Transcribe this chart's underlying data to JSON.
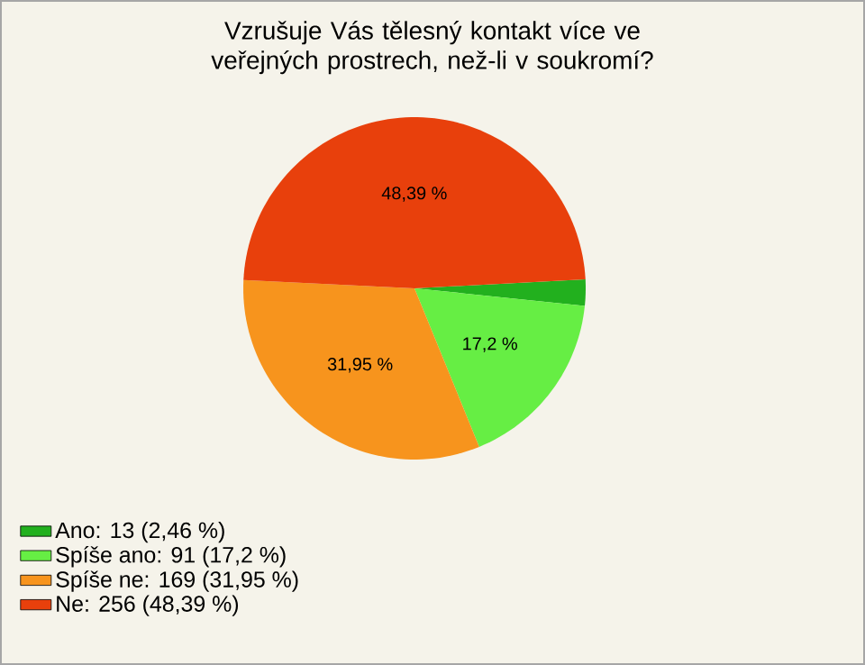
{
  "chart_data": {
    "type": "pie",
    "title": "Vzrušuje Vás tělesný kontakt více ve veřejných prostrech, než-li v soukromí?",
    "categories": [
      "Ano: 13 (2,46 %)",
      "Spíše ano: 91 (17,2 %)",
      "Spíše ne: 169 (31,95 %)",
      "Ne: 256 (48,39 %)"
    ],
    "values": [
      2.46,
      17.2,
      31.95,
      48.39
    ],
    "colors": [
      "#22b01e",
      "#66ee44",
      "#f7941d",
      "#e8400c"
    ],
    "value_labels": [
      null,
      "17,2 %",
      "31,95 %",
      "48,39 %"
    ],
    "legend": "bottom left"
  }
}
